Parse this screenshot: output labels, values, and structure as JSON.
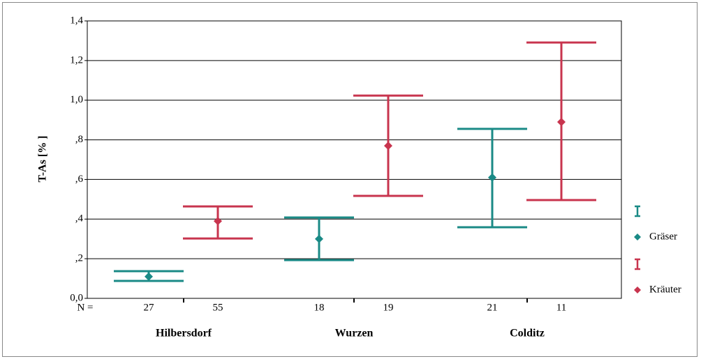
{
  "chart_data": {
    "type": "errorbar",
    "y_label": "T-As [% ]",
    "n_label": "N =",
    "categories": [
      "Hilbersdorf",
      "Wurzen",
      "Colditz"
    ],
    "series": [
      {
        "name": "Gräser",
        "color": "#1a8a86",
        "n": [
          27,
          18,
          21
        ],
        "values": [
          0.11,
          0.3,
          0.61
        ],
        "lower": [
          0.088,
          0.193,
          0.359
        ],
        "upper": [
          0.137,
          0.408,
          0.855
        ]
      },
      {
        "name": "Kräuter",
        "color": "#c8344e",
        "n": [
          55,
          19,
          11
        ],
        "values": [
          0.39,
          0.77,
          0.89
        ],
        "lower": [
          0.302,
          0.517,
          0.496
        ],
        "upper": [
          0.464,
          1.023,
          1.291
        ]
      }
    ],
    "ylim": [
      0,
      1.4
    ],
    "yticks": [
      {
        "value": 0,
        "label": "0,0"
      },
      {
        "value": 0.2,
        "label": ",2"
      },
      {
        "value": 0.4,
        "label": ",4"
      },
      {
        "value": 0.6,
        "label": ",6"
      },
      {
        "value": 0.8,
        "label": ",8"
      },
      {
        "value": 1.0,
        "label": "1,0"
      },
      {
        "value": 1.2,
        "label": "1,2"
      },
      {
        "value": 1.4,
        "label": "1,4"
      }
    ],
    "grid": true,
    "legend": "right"
  }
}
